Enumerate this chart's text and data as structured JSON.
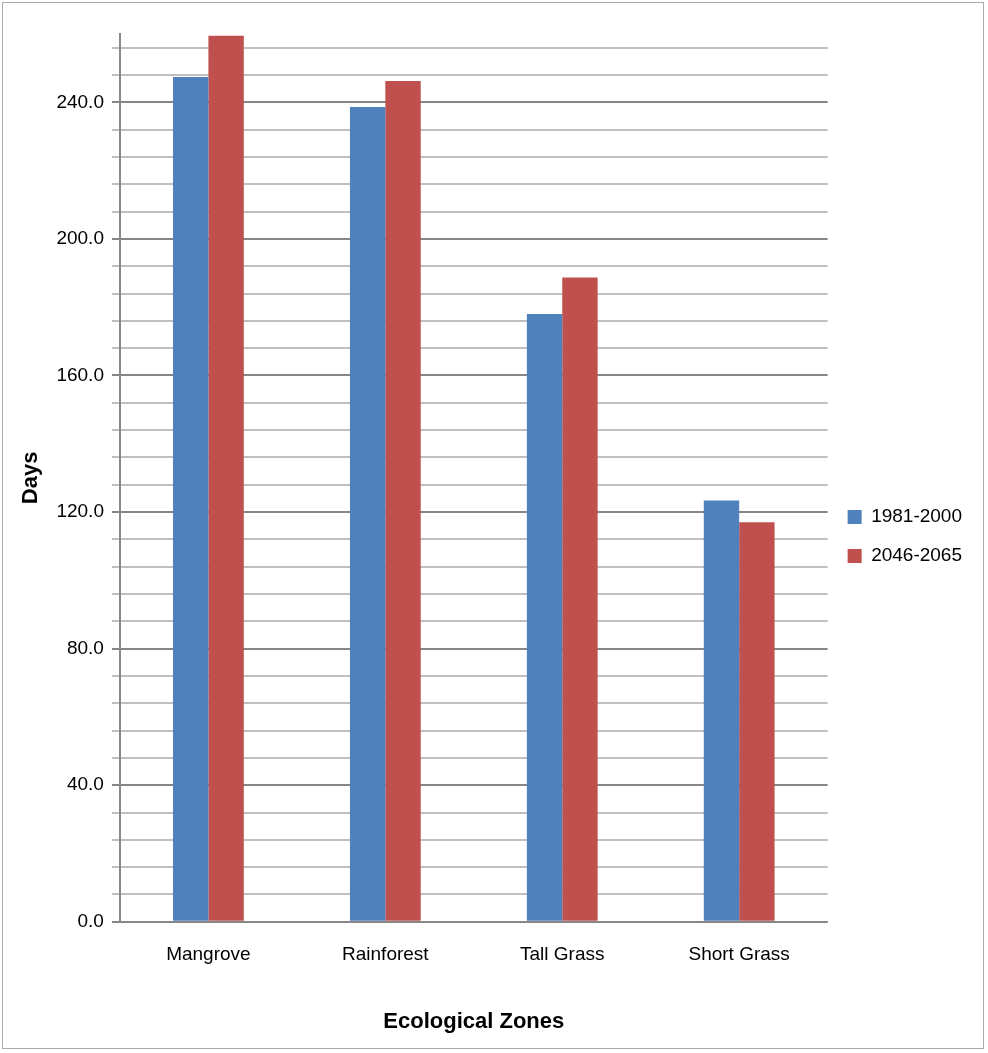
{
  "chart_data": {
    "type": "bar",
    "xlabel": "Ecological Zones",
    "ylabel": "Days",
    "categories": [
      "Mangrove",
      "Rainforest",
      "Tall Grass",
      "Short Grass"
    ],
    "series": [
      {
        "name": "1981-2000",
        "color": "#4f81bd",
        "values": [
          247.4,
          238.6,
          178,
          123.4
        ]
      },
      {
        "name": "2046-2065",
        "color": "#c0504d",
        "values": [
          259.5,
          246.2,
          188.7,
          117
        ]
      }
    ],
    "ylim": [
      0,
      260
    ],
    "yticks": [
      {
        "value": 0,
        "label": "0.0"
      },
      {
        "value": 8,
        "label": null
      },
      {
        "value": 16,
        "label": null
      },
      {
        "value": 24,
        "label": null
      },
      {
        "value": 32,
        "label": null
      },
      {
        "value": 40,
        "label": "40.0"
      },
      {
        "value": 48,
        "label": null
      },
      {
        "value": 56,
        "label": null
      },
      {
        "value": 64,
        "label": null
      },
      {
        "value": 72,
        "label": null
      },
      {
        "value": 80,
        "label": "80.0"
      },
      {
        "value": 88,
        "label": null
      },
      {
        "value": 96,
        "label": null
      },
      {
        "value": 104,
        "label": null
      },
      {
        "value": 112,
        "label": null
      },
      {
        "value": 120,
        "label": "120.0"
      },
      {
        "value": 128,
        "label": null
      },
      {
        "value": 136,
        "label": null
      },
      {
        "value": 144,
        "label": null
      },
      {
        "value": 152,
        "label": null
      },
      {
        "value": 160,
        "label": "160.0"
      },
      {
        "value": 168,
        "label": null
      },
      {
        "value": 176,
        "label": null
      },
      {
        "value": 184,
        "label": null
      },
      {
        "value": 192,
        "label": null
      },
      {
        "value": 200,
        "label": "200.0"
      },
      {
        "value": 208,
        "label": null
      },
      {
        "value": 216,
        "label": null
      },
      {
        "value": 224,
        "label": null
      },
      {
        "value": 232,
        "label": null
      },
      {
        "value": 240,
        "label": "240.0"
      },
      {
        "value": 248,
        "label": null
      },
      {
        "value": 256,
        "label": null
      }
    ],
    "grid": "y",
    "legend": "right"
  }
}
